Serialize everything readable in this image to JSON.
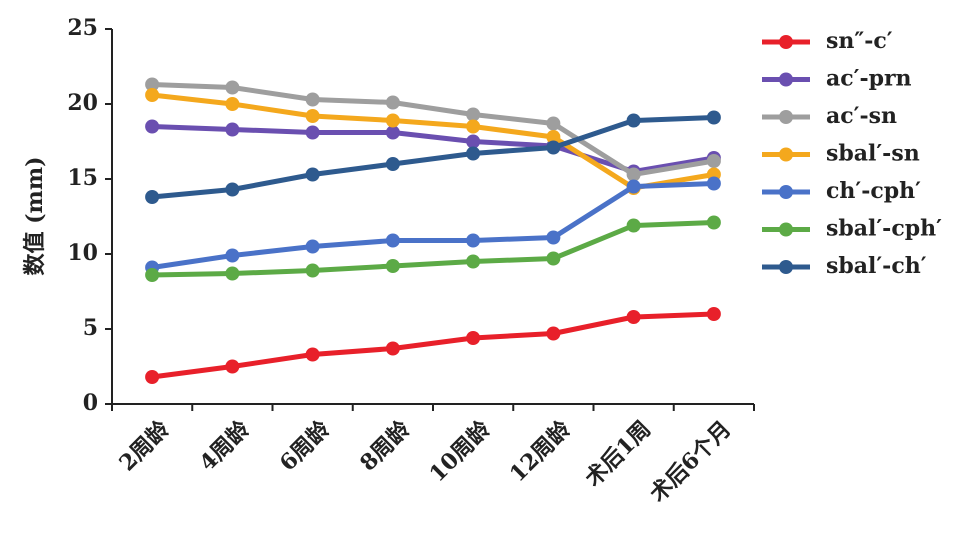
{
  "chart_data": {
    "type": "line",
    "ylabel": "数值 (mm)",
    "categories": [
      "2周龄",
      "4周龄",
      "6周龄",
      "8周龄",
      "10周龄",
      "12周龄",
      "术后1周",
      "术后6个月"
    ],
    "ylim": [
      0,
      25
    ],
    "yticks": [
      0,
      5,
      10,
      15,
      20,
      25
    ],
    "series": [
      {
        "name": "sn″-c′",
        "color": "#e8202a",
        "values": [
          1.8,
          2.5,
          3.3,
          3.7,
          4.4,
          4.7,
          5.8,
          6.0
        ]
      },
      {
        "name": "ac′-prn",
        "color": "#6a4fb0",
        "values": [
          18.5,
          18.3,
          18.1,
          18.1,
          17.5,
          17.2,
          15.5,
          16.4
        ]
      },
      {
        "name": "ac′-sn",
        "color": "#9e9e9e",
        "values": [
          21.3,
          21.1,
          20.3,
          20.1,
          19.3,
          18.7,
          15.3,
          16.2
        ]
      },
      {
        "name": "sbal′-sn",
        "color": "#f4a81d",
        "values": [
          20.6,
          20.0,
          19.2,
          18.9,
          18.5,
          17.8,
          14.4,
          15.3
        ]
      },
      {
        "name": "ch′-cph′",
        "color": "#4a72c8",
        "values": [
          9.1,
          9.9,
          10.5,
          10.9,
          10.9,
          11.1,
          14.5,
          14.7
        ]
      },
      {
        "name": "sbal′-cph′",
        "color": "#5caa46",
        "values": [
          8.6,
          8.7,
          8.9,
          9.2,
          9.5,
          9.7,
          11.9,
          12.1
        ]
      },
      {
        "name": "sbal′-ch′",
        "color": "#2e5a8e",
        "values": [
          13.8,
          14.3,
          15.3,
          16.0,
          16.7,
          17.1,
          18.9,
          19.1
        ]
      }
    ]
  }
}
